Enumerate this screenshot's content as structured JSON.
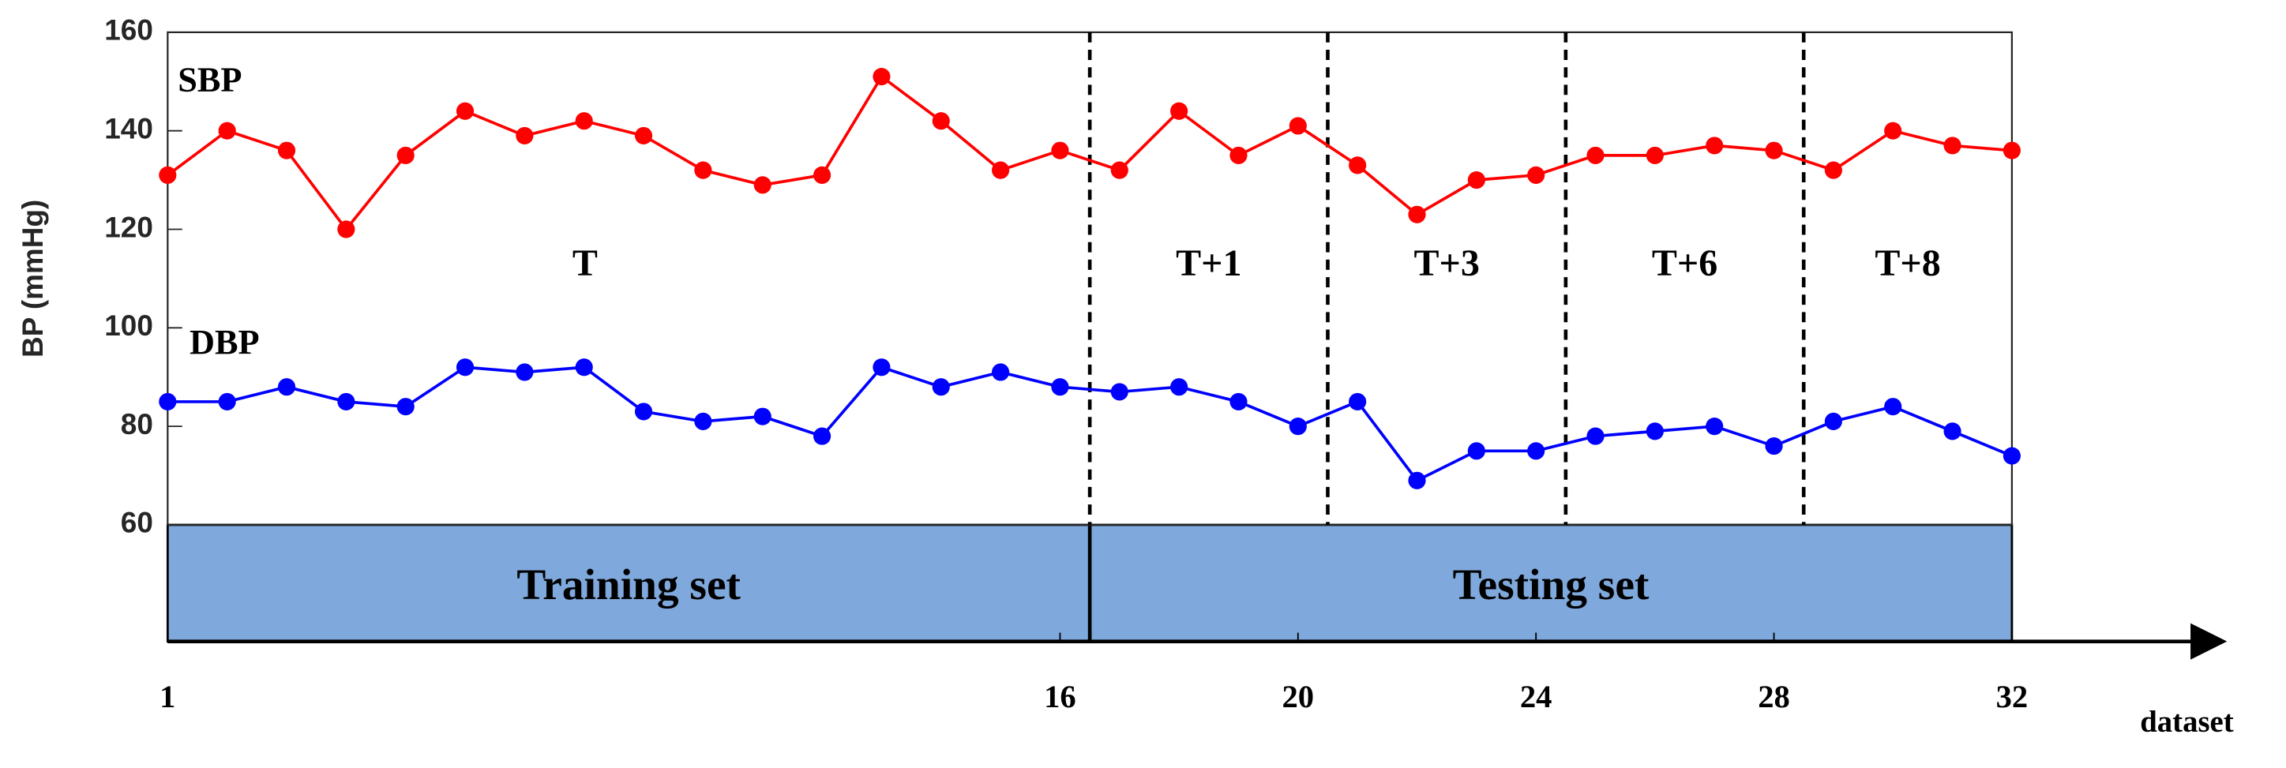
{
  "chart_data": {
    "type": "line",
    "y_label": "BP (mmHg)",
    "x_label": "dataset",
    "x": [
      1,
      2,
      3,
      4,
      5,
      6,
      7,
      8,
      9,
      10,
      11,
      12,
      13,
      14,
      15,
      16,
      17,
      18,
      19,
      20,
      21,
      22,
      23,
      24,
      25,
      26,
      27,
      28,
      29,
      30,
      31,
      32
    ],
    "series": [
      {
        "name": "SBP",
        "color": "#ff0000",
        "values": [
          131,
          140,
          136,
          120,
          135,
          144,
          139,
          142,
          139,
          132,
          129,
          131,
          151,
          142,
          132,
          136,
          132,
          144,
          135,
          141,
          133,
          123,
          130,
          131,
          135,
          135,
          137,
          136,
          132,
          140,
          137,
          136
        ]
      },
      {
        "name": "DBP",
        "color": "#0000ff",
        "values": [
          85,
          85,
          88,
          85,
          84,
          92,
          91,
          92,
          83,
          81,
          82,
          78,
          92,
          88,
          91,
          88,
          87,
          88,
          85,
          80,
          85,
          69,
          75,
          75,
          78,
          79,
          80,
          76,
          81,
          84,
          79,
          74
        ]
      }
    ],
    "xlim": [
      1,
      32
    ],
    "xticks": [
      1,
      16,
      20,
      24,
      28,
      32
    ],
    "ylim": [
      60,
      160
    ],
    "yticks": [
      60,
      80,
      100,
      120,
      140,
      160
    ],
    "dividers": [
      16.5,
      20.5,
      24.5,
      28.5
    ],
    "groups": [
      "T",
      "T+1",
      "T+3",
      "T+6",
      "T+8"
    ],
    "sets": [
      {
        "label": "Training set",
        "range": [
          1,
          16.5
        ]
      },
      {
        "label": "Testing set",
        "range": [
          16.5,
          32
        ]
      }
    ],
    "set_color": "#7fa8dc"
  }
}
